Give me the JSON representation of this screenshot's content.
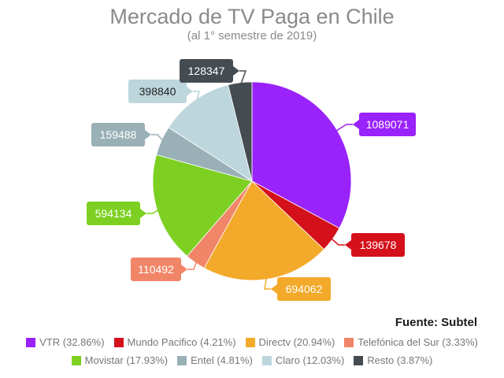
{
  "chart_data": {
    "type": "pie",
    "title": "Mercado de TV Paga en Chile",
    "subtitle": "(al 1° semestre de 2019)",
    "source": "Fuente: Subtel",
    "legend_position": "bottom",
    "slices": [
      {
        "name": "VTR",
        "value": 1089071,
        "percent_label": "VTR (32.86%)",
        "color": "#9a22fb"
      },
      {
        "name": "Mundo Pacifico",
        "value": 139678,
        "percent_label": "Mundo Pacifico (4.21%)",
        "color": "#d4101b"
      },
      {
        "name": "Directv",
        "value": 694062,
        "percent_label": "Directv (20.94%)",
        "color": "#f3a929"
      },
      {
        "name": "Telefónica del Sur",
        "value": 110492,
        "percent_label": "Telefónica del Sur (3.33%)",
        "color": "#f18568"
      },
      {
        "name": "Movistar",
        "value": 594134,
        "percent_label": "Movistar (17.93%)",
        "color": "#7dd022"
      },
      {
        "name": "Entel",
        "value": 159488,
        "percent_label": "Entel (4.81%)",
        "color": "#99b0b6"
      },
      {
        "name": "Claro",
        "value": 398840,
        "percent_label": "Claro (12.03%)",
        "color": "#bcd6dc"
      },
      {
        "name": "Resto",
        "value": 128347,
        "percent_label": "Resto (3.87%)",
        "color": "#444c52"
      }
    ]
  }
}
